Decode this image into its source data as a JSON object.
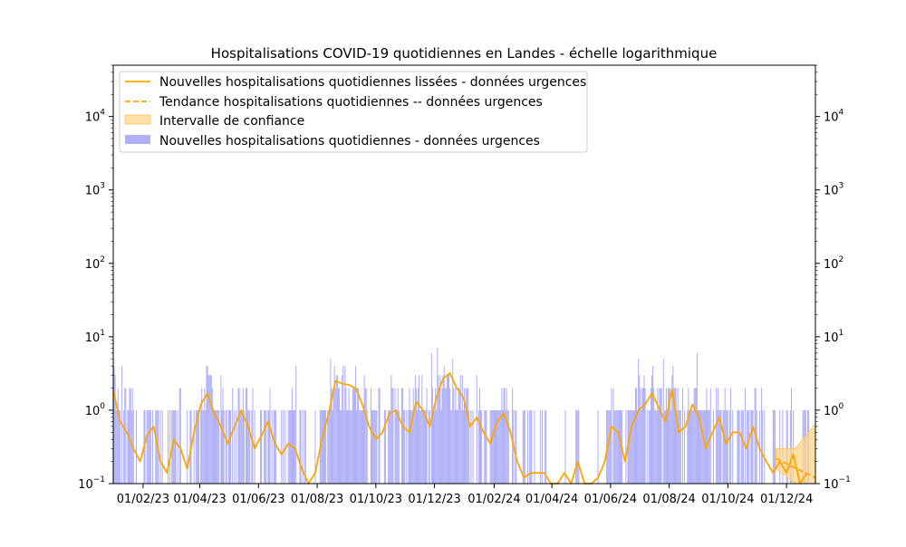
{
  "chart_data": {
    "type": "bar",
    "title": "Hospitalisations COVID-19 quotidiennes en Landes - échelle logarithmique",
    "yscale": "log",
    "ylim": [
      0.1,
      50000
    ],
    "xlim": [
      "2023-01-01",
      "2024-12-31"
    ],
    "y_ticks": [
      {
        "value": 0.1,
        "base": "10",
        "exp": "−1"
      },
      {
        "value": 1,
        "base": "10",
        "exp": "0"
      },
      {
        "value": 10,
        "base": "10",
        "exp": "1"
      },
      {
        "value": 100,
        "base": "10",
        "exp": "2"
      },
      {
        "value": 1000,
        "base": "10",
        "exp": "3"
      },
      {
        "value": 10000,
        "base": "10",
        "exp": "4"
      }
    ],
    "x_ticks": [
      {
        "date": "2023-02-01",
        "label": "01/02/23"
      },
      {
        "date": "2023-04-01",
        "label": "01/04/23"
      },
      {
        "date": "2023-06-01",
        "label": "01/06/23"
      },
      {
        "date": "2023-08-01",
        "label": "01/08/23"
      },
      {
        "date": "2023-10-01",
        "label": "01/10/23"
      },
      {
        "date": "2023-12-01",
        "label": "01/12/23"
      },
      {
        "date": "2024-02-01",
        "label": "01/02/24"
      },
      {
        "date": "2024-04-01",
        "label": "01/04/24"
      },
      {
        "date": "2024-06-01",
        "label": "01/06/24"
      },
      {
        "date": "2024-08-01",
        "label": "01/08/24"
      },
      {
        "date": "2024-10-01",
        "label": "01/10/24"
      },
      {
        "date": "2024-12-01",
        "label": "01/12/24"
      }
    ],
    "legend": {
      "location": "upper-left",
      "entries": [
        {
          "label": "Nouvelles hospitalisations quotidiennes lissées - données urgences",
          "style": "line"
        },
        {
          "label": "Tendance hospitalisations quotidiennes -- données urgences",
          "style": "dashed"
        },
        {
          "label": "Intervalle de confiance",
          "style": "patch"
        },
        {
          "label": "Nouvelles hospitalisations quotidiennes - données urgences",
          "style": "bar"
        }
      ]
    },
    "colors": {
      "smoothed": "#ffa500",
      "trend": "#ffa500",
      "confidence": "#ffd58a",
      "bars": "#b0b0f8"
    },
    "series": [
      {
        "name": "Nouvelles hospitalisations quotidiennes - données urgences",
        "type": "bar",
        "date_range": [
          "2023-01-01",
          "2024-12-24"
        ],
        "peaks": [
          {
            "date": "2023-01-03",
            "value": 3
          },
          {
            "date": "2023-01-10",
            "value": 4
          },
          {
            "date": "2023-04-08",
            "value": 4
          },
          {
            "date": "2023-04-23",
            "value": 3
          },
          {
            "date": "2023-07-10",
            "value": 4
          },
          {
            "date": "2023-08-15",
            "value": 5
          },
          {
            "date": "2023-11-28",
            "value": 6
          },
          {
            "date": "2023-12-04",
            "value": 7
          },
          {
            "date": "2023-12-20",
            "value": 5
          },
          {
            "date": "2024-06-30",
            "value": 5
          },
          {
            "date": "2024-07-26",
            "value": 5
          },
          {
            "date": "2024-08-30",
            "value": 6
          },
          {
            "date": "2024-11-05",
            "value": 2
          },
          {
            "date": "2024-12-06",
            "value": 2
          }
        ]
      },
      {
        "name": "Nouvelles hospitalisations quotidiennes lissées - données urgences",
        "type": "line",
        "x": [
          "2023-01-01",
          "2023-01-08",
          "2023-01-15",
          "2023-01-22",
          "2023-01-29",
          "2023-02-05",
          "2023-02-12",
          "2023-02-19",
          "2023-02-26",
          "2023-03-05",
          "2023-03-12",
          "2023-03-19",
          "2023-03-26",
          "2023-04-02",
          "2023-04-09",
          "2023-04-16",
          "2023-04-23",
          "2023-04-30",
          "2023-05-07",
          "2023-05-14",
          "2023-05-21",
          "2023-05-28",
          "2023-06-04",
          "2023-06-11",
          "2023-06-18",
          "2023-06-25",
          "2023-07-02",
          "2023-07-09",
          "2023-07-16",
          "2023-07-23",
          "2023-07-30",
          "2023-08-06",
          "2023-08-13",
          "2023-08-20",
          "2023-08-27",
          "2023-09-03",
          "2023-09-10",
          "2023-09-17",
          "2023-09-24",
          "2023-10-01",
          "2023-10-08",
          "2023-10-15",
          "2023-10-22",
          "2023-10-29",
          "2023-11-05",
          "2023-11-12",
          "2023-11-19",
          "2023-11-26",
          "2023-12-03",
          "2023-12-10",
          "2023-12-17",
          "2023-12-24",
          "2023-12-31",
          "2024-01-07",
          "2024-01-14",
          "2024-01-21",
          "2024-01-28",
          "2024-02-04",
          "2024-02-11",
          "2024-02-18",
          "2024-02-25",
          "2024-03-03",
          "2024-03-10",
          "2024-03-17",
          "2024-03-24",
          "2024-03-31",
          "2024-04-07",
          "2024-04-14",
          "2024-04-21",
          "2024-04-28",
          "2024-05-05",
          "2024-05-12",
          "2024-05-19",
          "2024-05-26",
          "2024-06-02",
          "2024-06-09",
          "2024-06-16",
          "2024-06-23",
          "2024-06-30",
          "2024-07-07",
          "2024-07-14",
          "2024-07-21",
          "2024-07-28",
          "2024-08-04",
          "2024-08-11",
          "2024-08-18",
          "2024-08-25",
          "2024-09-01",
          "2024-09-08",
          "2024-09-15",
          "2024-09-22",
          "2024-09-29",
          "2024-10-06",
          "2024-10-13",
          "2024-10-20",
          "2024-10-27",
          "2024-11-03",
          "2024-11-10",
          "2024-11-17",
          "2024-11-24",
          "2024-12-01",
          "2024-12-08",
          "2024-12-15",
          "2024-12-22"
        ],
        "values": [
          1.9,
          0.7,
          0.5,
          0.3,
          0.2,
          0.45,
          0.6,
          0.2,
          0.14,
          0.4,
          0.3,
          0.16,
          0.5,
          1.2,
          1.7,
          0.9,
          0.6,
          0.35,
          0.6,
          1.0,
          0.6,
          0.3,
          0.45,
          0.7,
          0.35,
          0.25,
          0.35,
          0.3,
          0.16,
          0.1,
          0.14,
          0.4,
          0.9,
          2.5,
          2.3,
          2.2,
          2.0,
          1.2,
          0.6,
          0.4,
          0.5,
          0.9,
          1.0,
          0.6,
          0.5,
          1.3,
          1.0,
          0.6,
          1.5,
          2.7,
          3.2,
          2.0,
          1.5,
          0.6,
          0.8,
          0.5,
          0.35,
          0.7,
          0.9,
          0.5,
          0.2,
          0.12,
          0.14,
          0.14,
          0.14,
          0.1,
          0.1,
          0.14,
          0.1,
          0.2,
          0.1,
          0.1,
          0.12,
          0.2,
          0.6,
          0.5,
          0.2,
          0.6,
          1.0,
          1.2,
          1.7,
          1.1,
          0.7,
          1.9,
          0.5,
          0.6,
          1.2,
          0.8,
          0.3,
          0.5,
          0.8,
          0.35,
          0.5,
          0.5,
          0.3,
          0.6,
          0.3,
          0.2,
          0.14,
          0.2,
          0.14,
          0.25,
          0.1,
          0.14
        ]
      },
      {
        "name": "Tendance hospitalisations quotidiennes -- données urgences",
        "type": "line",
        "style": "dashed",
        "x": [
          "2024-11-20",
          "2024-12-31"
        ],
        "values": [
          0.22,
          0.12
        ]
      },
      {
        "name": "Intervalle de confiance",
        "type": "area",
        "x": [
          "2024-11-20",
          "2024-12-10",
          "2024-12-31"
        ],
        "upper": [
          0.3,
          0.3,
          0.65
        ],
        "lower": [
          0.16,
          0.1,
          0.1
        ]
      }
    ]
  }
}
